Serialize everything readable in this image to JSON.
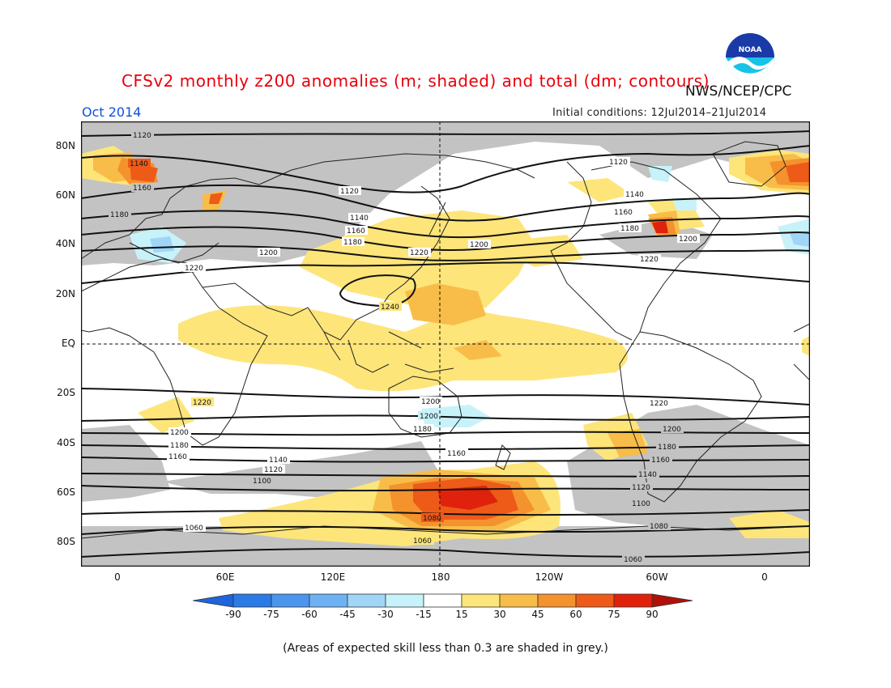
{
  "header": {
    "title": "CFSv2 monthly z200 anomalies (m; shaded) and total (dm; contours)",
    "agency": "NWS/NCEP/CPC",
    "month": "Oct 2014",
    "initial_conditions": "Initial conditions: 12Jul2014–21Jul2014",
    "logo_text": "NOAA"
  },
  "map": {
    "lat_labels": [
      "80N",
      "60N",
      "40N",
      "20N",
      "EQ",
      "20S",
      "40S",
      "60S",
      "80S"
    ],
    "lon_labels": [
      "0",
      "60E",
      "120E",
      "180",
      "120W",
      "60W",
      "0"
    ],
    "contour_labels": [
      "1060",
      "1080",
      "1100",
      "1120",
      "1140",
      "1160",
      "1180",
      "1200",
      "1220",
      "1240"
    ]
  },
  "colorbar": {
    "labels": [
      "-90",
      "-75",
      "-60",
      "-45",
      "-30",
      "-15",
      "15",
      "30",
      "45",
      "60",
      "75",
      "90"
    ],
    "colors": {
      "lt-90": "#1e64dc",
      "-90to-75": "#2b7be6",
      "-75to-60": "#4a96ee",
      "-60to-45": "#6eb2f4",
      "-45to-30": "#9fd6f8",
      "-30to-15": "#c8f2fa",
      "-15to15": "#ffffff",
      "15to30": "#fde57a",
      "30to45": "#f8bd48",
      "45to60": "#f4922e",
      "60to75": "#ee5a18",
      "75to90": "#e0220c",
      "gt90": "#b0100a"
    }
  },
  "footnote": "(Areas of expected skill less than 0.3 are shaded in grey.)"
}
